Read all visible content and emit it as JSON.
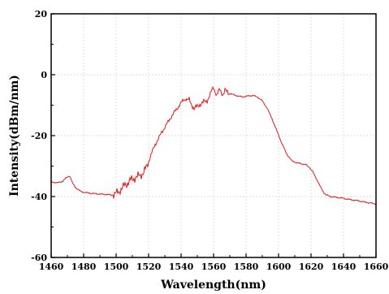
{
  "chart_data": {
    "type": "line",
    "title": "",
    "xlabel": "Wavelength(nm)",
    "ylabel": "Intensity(dBm/nm)",
    "xlim": [
      1460,
      1660
    ],
    "ylim": [
      -60,
      20
    ],
    "x_ticks": [
      1460,
      1480,
      1500,
      1520,
      1540,
      1560,
      1580,
      1600,
      1620,
      1640,
      1660
    ],
    "y_ticks": [
      -60,
      -40,
      -20,
      0,
      20
    ],
    "x_tick_labels": [
      "1460",
      "1480",
      "1500",
      "1520",
      "1540",
      "1560",
      "1580",
      "1600",
      "1620",
      "1640",
      "1660"
    ],
    "y_tick_labels": [
      "-60",
      "-40",
      "-20",
      "0",
      "20"
    ],
    "grid": true,
    "legend": "none",
    "series": [
      {
        "color": "#e8171b",
        "points": [
          [
            1460,
            -35.2
          ],
          [
            1464,
            -35.5
          ],
          [
            1467,
            -35.0
          ],
          [
            1469,
            -34.0
          ],
          [
            1471,
            -33.2
          ],
          [
            1472,
            -33.8
          ],
          [
            1473,
            -35.5
          ],
          [
            1475,
            -37.0
          ],
          [
            1478,
            -38.3
          ],
          [
            1482,
            -38.8
          ],
          [
            1486,
            -39.0
          ],
          [
            1490,
            -39.2
          ],
          [
            1494,
            -39.3
          ],
          [
            1497,
            -39.5
          ],
          [
            1499,
            -39.3
          ],
          [
            1501,
            -38.6
          ],
          [
            1503,
            -37.6
          ],
          [
            1505,
            -36.5
          ],
          [
            1507,
            -35.5
          ],
          [
            1509,
            -34.6
          ],
          [
            1511,
            -34.0
          ],
          [
            1513,
            -33.5
          ],
          [
            1515,
            -33.0
          ],
          [
            1517,
            -32.0
          ],
          [
            1519,
            -30.0
          ],
          [
            1520,
            -28.5
          ],
          [
            1522,
            -25.5
          ],
          [
            1524,
            -23.0
          ],
          [
            1526,
            -21.0
          ],
          [
            1528,
            -19.0
          ],
          [
            1530,
            -17.2
          ],
          [
            1532,
            -15.5
          ],
          [
            1534,
            -13.8
          ],
          [
            1536,
            -12.2
          ],
          [
            1538,
            -10.8
          ],
          [
            1540,
            -9.2
          ],
          [
            1542,
            -8.2
          ],
          [
            1543,
            -7.9
          ],
          [
            1545,
            -8.3
          ],
          [
            1546,
            -9.5
          ],
          [
            1548,
            -11.0
          ],
          [
            1550,
            -10.5
          ],
          [
            1552,
            -9.5
          ],
          [
            1554,
            -9.0
          ],
          [
            1556,
            -8.5
          ],
          [
            1558,
            -6.5
          ],
          [
            1559,
            -5.0
          ],
          [
            1560,
            -4.0
          ],
          [
            1561,
            -5.5
          ],
          [
            1562,
            -7.0
          ],
          [
            1563,
            -5.5
          ],
          [
            1564,
            -4.8
          ],
          [
            1565,
            -6.0
          ],
          [
            1566,
            -6.5
          ],
          [
            1567,
            -5.2
          ],
          [
            1568,
            -5.5
          ],
          [
            1570,
            -6.2
          ],
          [
            1572,
            -6.5
          ],
          [
            1575,
            -7.0
          ],
          [
            1578,
            -7.3
          ],
          [
            1581,
            -7.0
          ],
          [
            1584,
            -6.8
          ],
          [
            1587,
            -7.3
          ],
          [
            1590,
            -8.6
          ],
          [
            1593,
            -11.0
          ],
          [
            1596,
            -14.5
          ],
          [
            1599,
            -18.5
          ],
          [
            1602,
            -22.5
          ],
          [
            1605,
            -26.0
          ],
          [
            1608,
            -28.2
          ],
          [
            1611,
            -28.9
          ],
          [
            1614,
            -29.2
          ],
          [
            1617,
            -29.6
          ],
          [
            1619,
            -30.4
          ],
          [
            1621,
            -31.8
          ],
          [
            1623,
            -33.8
          ],
          [
            1625,
            -36.0
          ],
          [
            1627,
            -38.0
          ],
          [
            1629,
            -39.4
          ],
          [
            1632,
            -40.0
          ],
          [
            1636,
            -40.3
          ],
          [
            1640,
            -40.6
          ],
          [
            1644,
            -41.0
          ],
          [
            1648,
            -41.3
          ],
          [
            1652,
            -41.7
          ],
          [
            1656,
            -42.1
          ],
          [
            1660,
            -42.4
          ]
        ]
      }
    ]
  }
}
